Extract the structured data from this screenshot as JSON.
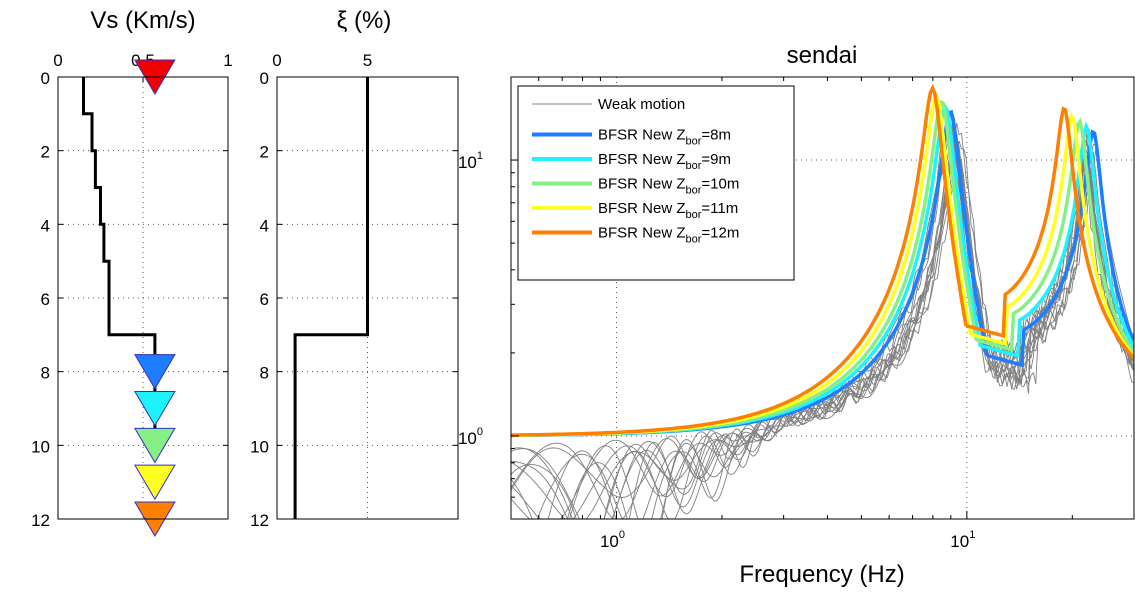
{
  "chart_data": [
    {
      "type": "line",
      "title": "Vs (Km/s)",
      "x_axis_position": "top",
      "xlim": [
        0,
        1
      ],
      "ylim": [
        12,
        0
      ],
      "y_reversed": true,
      "xticks": [
        "0",
        "0.5",
        "1"
      ],
      "yticks": [
        "0",
        "2",
        "4",
        "6",
        "8",
        "10",
        "12"
      ],
      "grid": "dotted",
      "profile": {
        "vs": [
          0.15,
          0.15,
          0.2,
          0.2,
          0.22,
          0.22,
          0.25,
          0.25,
          0.27,
          0.27,
          0.3,
          0.3,
          0.57,
          0.57
        ],
        "depth": [
          0,
          1.0,
          1.0,
          2.0,
          2.0,
          3.0,
          3.0,
          4.0,
          4.0,
          5.0,
          5.0,
          7.0,
          7.0,
          9.6
        ]
      },
      "markers": [
        {
          "vs": 0.57,
          "depth": 0,
          "color": "#f00000"
        },
        {
          "vs": 0.57,
          "depth": 8,
          "color": "#1f7dff"
        },
        {
          "vs": 0.57,
          "depth": 9,
          "color": "#1ef2ff"
        },
        {
          "vs": 0.57,
          "depth": 10,
          "color": "#86ef86"
        },
        {
          "vs": 0.57,
          "depth": 11,
          "color": "#ffff20"
        },
        {
          "vs": 0.57,
          "depth": 12,
          "color": "#ff7f00"
        }
      ]
    },
    {
      "type": "line",
      "title": "ξ (%)",
      "x_axis_position": "top",
      "xlim": [
        0,
        10
      ],
      "ylim": [
        12,
        0
      ],
      "y_reversed": true,
      "xticks": [
        "0",
        "5"
      ],
      "yticks": [
        "0",
        "2",
        "4",
        "6",
        "8",
        "10",
        "12"
      ],
      "grid": "dotted",
      "profile": {
        "xi": [
          5,
          5,
          1,
          1
        ],
        "depth": [
          0,
          7,
          7,
          12
        ]
      }
    },
    {
      "type": "line",
      "title": "sendai",
      "xlabel": "Frequency (Hz)",
      "x_scale": "log",
      "y_scale": "log",
      "xlim": [
        0.5,
        30
      ],
      "ylim": [
        0.5,
        20
      ],
      "xticks": [
        {
          "value": 1,
          "base": "10",
          "exp": "0"
        },
        {
          "value": 10,
          "base": "10",
          "exp": "1"
        }
      ],
      "yticks": [
        {
          "value": 1,
          "base": "10",
          "exp": "0"
        },
        {
          "value": 10,
          "base": "10",
          "exp": "1"
        }
      ],
      "grid": "dotted",
      "legend": {
        "placement": "top-left",
        "entries": [
          {
            "text": "Weak motion",
            "sub": "",
            "suffix": "",
            "color": "#808080"
          },
          {
            "text": "BFSR New Z",
            "sub": "bor",
            "suffix": "=8m",
            "color": "#1f7dff"
          },
          {
            "text": "BFSR New Z",
            "sub": "bor",
            "suffix": "=9m",
            "color": "#1ef2ff"
          },
          {
            "text": "BFSR New Z",
            "sub": "bor",
            "suffix": "=10m",
            "color": "#86ef86"
          },
          {
            "text": "BFSR New Z",
            "sub": "bor",
            "suffix": "=11m",
            "color": "#ffff20"
          },
          {
            "text": "BFSR New Z",
            "sub": "bor",
            "suffix": "=12m",
            "color": "#ff7f00"
          }
        ]
      },
      "weak_motion": {
        "name": "Weak motion",
        "color": "#808080",
        "count": 14
      },
      "series": [
        {
          "name": "BFSR New Zbor=8m",
          "color": "#1f7dff",
          "f1": 9.0,
          "a1": 15.0,
          "trough_f": 14.5,
          "trough_a": 1.8,
          "f2": 23.0
        },
        {
          "name": "BFSR New Zbor=9m",
          "color": "#1ef2ff",
          "f1": 8.7,
          "a1": 15.6,
          "trough_f": 14.0,
          "trough_a": 1.95,
          "f2": 22.0
        },
        {
          "name": "BFSR New Zbor=10m",
          "color": "#86ef86",
          "f1": 8.5,
          "a1": 16.3,
          "trough_f": 13.5,
          "trough_a": 2.05,
          "f2": 21.0
        },
        {
          "name": "BFSR New Zbor=11m",
          "color": "#ffff20",
          "f1": 8.2,
          "a1": 17.0,
          "trough_f": 13.0,
          "trough_a": 2.15,
          "f2": 20.0
        },
        {
          "name": "BFSR New Zbor=12m",
          "color": "#ff7f00",
          "f1": 8.0,
          "a1": 18.2,
          "trough_f": 12.8,
          "trough_a": 2.3,
          "f2": 19.0
        }
      ]
    }
  ]
}
